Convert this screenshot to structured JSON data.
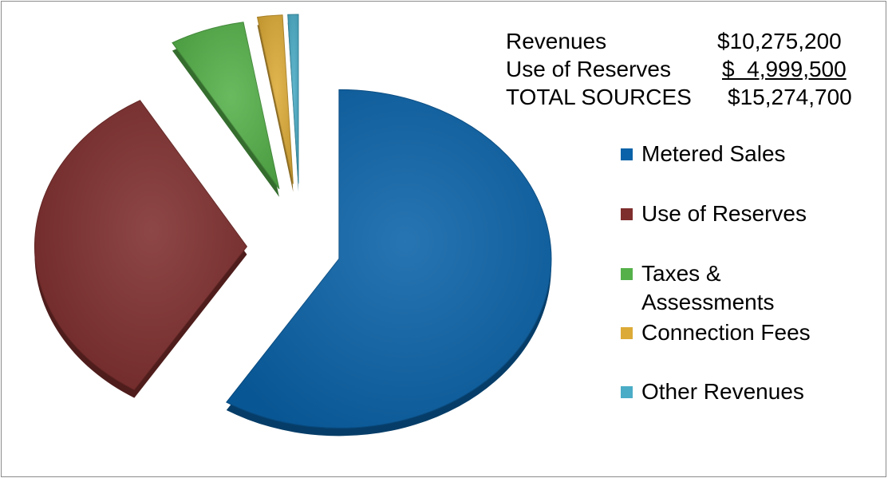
{
  "summary": {
    "rows": [
      {
        "label": "Revenues",
        "value": "$10,275,200"
      },
      {
        "label": "Use of Reserves",
        "value": "$  4,999,500"
      },
      {
        "label": "TOTAL SOURCES",
        "value": "$15,274,700"
      }
    ]
  },
  "chart_data": {
    "type": "pie",
    "title": "",
    "slices": [
      {
        "name": "Metered Sales",
        "value": 58.9,
        "color": "#0a62a8"
      },
      {
        "name": "Use of Reserves",
        "value": 32.7,
        "color": "#7e2e2d"
      },
      {
        "name": "Taxes & Assessments",
        "value": 5.7,
        "color": "#55b04a"
      },
      {
        "name": "Connection Fees",
        "value": 1.9,
        "color": "#dcaa37"
      },
      {
        "name": "Other Revenues",
        "value": 0.8,
        "color": "#4aacc6"
      }
    ],
    "legend": {
      "position": "right",
      "lines": [
        [
          "Metered Sales"
        ],
        [
          "Use of Reserves"
        ],
        [
          "Taxes &",
          "Assessments"
        ],
        [
          "Connection Fees"
        ],
        [
          "Other Revenues"
        ]
      ]
    },
    "style": "3d-exploded"
  }
}
